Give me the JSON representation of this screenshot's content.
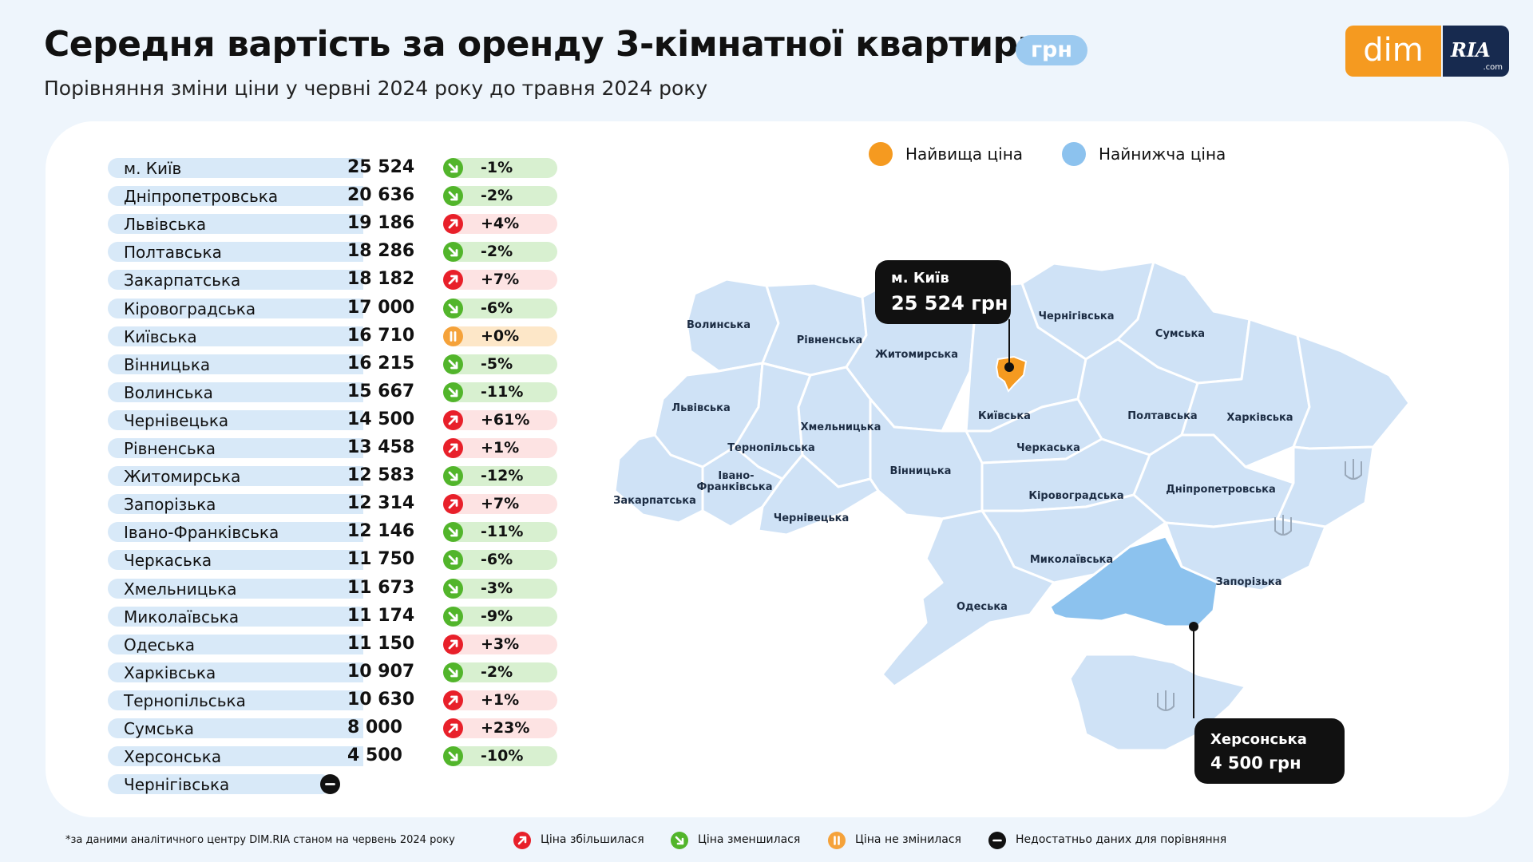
{
  "header": {
    "title": "Середня вартість за оренду 3-кімнатної квартири",
    "unit_badge": "грн",
    "subtitle": "Порівняння зміни ціни у червні 2024 року до травня 2024 року"
  },
  "logo": {
    "dim": "dim",
    "ria": "RIA",
    "com": ".com"
  },
  "colors": {
    "up": "#e8202a",
    "down": "#52b52b",
    "same": "#f5a23a",
    "nodata": "#111111",
    "up_bg": "#fde3e3",
    "down_bg": "#d8f0d0",
    "same_bg": "#fde7c8",
    "highest": "#f59a20",
    "lowest": "#8cc2ee",
    "region": "#cfe2f6"
  },
  "table": [
    {
      "region": "м. Київ",
      "price": "25 524",
      "change": "-1%",
      "trend": "down"
    },
    {
      "region": "Дніпропетровська",
      "price": "20 636",
      "change": "-2%",
      "trend": "down"
    },
    {
      "region": "Львівська",
      "price": "19 186",
      "change": "+4%",
      "trend": "up"
    },
    {
      "region": "Полтавська",
      "price": "18 286",
      "change": "-2%",
      "trend": "down"
    },
    {
      "region": "Закарпатська",
      "price": "18 182",
      "change": "+7%",
      "trend": "up"
    },
    {
      "region": "Кіровоградська",
      "price": "17 000",
      "change": "-6%",
      "trend": "down"
    },
    {
      "region": "Київська",
      "price": "16 710",
      "change": "+0%",
      "trend": "same"
    },
    {
      "region": "Вінницька",
      "price": "16 215",
      "change": "-5%",
      "trend": "down"
    },
    {
      "region": "Волинська",
      "price": "15 667",
      "change": "-11%",
      "trend": "down"
    },
    {
      "region": "Чернівецька",
      "price": "14 500",
      "change": "+61%",
      "trend": "up"
    },
    {
      "region": "Рівненська",
      "price": "13 458",
      "change": "+1%",
      "trend": "up"
    },
    {
      "region": "Житомирська",
      "price": "12 583",
      "change": "-12%",
      "trend": "down"
    },
    {
      "region": "Запорізька",
      "price": "12 314",
      "change": "+7%",
      "trend": "up"
    },
    {
      "region": "Івано-Франківська",
      "price": "12 146",
      "change": "-11%",
      "trend": "down"
    },
    {
      "region": "Черкаська",
      "price": "11 750",
      "change": "-6%",
      "trend": "down"
    },
    {
      "region": "Хмельницька",
      "price": "11 673",
      "change": "-3%",
      "trend": "down"
    },
    {
      "region": "Миколаївська",
      "price": "11 174",
      "change": "-9%",
      "trend": "down"
    },
    {
      "region": "Одеська",
      "price": "11 150",
      "change": "+3%",
      "trend": "up"
    },
    {
      "region": "Харківська",
      "price": "10 907",
      "change": "-2%",
      "trend": "down"
    },
    {
      "region": "Тернопільська",
      "price": "10 630",
      "change": "+1%",
      "trend": "up"
    },
    {
      "region": "Сумська",
      "price": "8 000",
      "change": "+23%",
      "trend": "up"
    },
    {
      "region": "Херсонська",
      "price": "4 500",
      "change": "-10%",
      "trend": "down"
    },
    {
      "region": "Чернігівська",
      "price": "",
      "change": "",
      "trend": "nodata"
    }
  ],
  "legend_top": {
    "highest": "Найвища ціна",
    "lowest": "Найнижча ціна"
  },
  "map_labels": {
    "volynska": "Волинська",
    "rivnenska": "Рівненська",
    "zhytomyrska": "Житомирська",
    "chernihivska": "Чернігівська",
    "sumska": "Сумська",
    "lvivska": "Львівська",
    "khmelnytska": "Хмельницька",
    "ternopilska": "Тернопільська",
    "kyivska": "Київська",
    "poltavska": "Полтавська",
    "kharkivska": "Харківська",
    "ivano1": "Івано-",
    "ivano2": "Франківська",
    "vinnytska": "Вінницька",
    "cherkaska": "Черкаська",
    "zakarpatska": "Закарпатська",
    "chernivetska": "Чернівецька",
    "kirovohradska": "Кіровоградська",
    "dnipropetrovska": "Дніпропетровська",
    "mykolaivska": "Миколаївська",
    "zaporizka": "Запорізька",
    "odeska": "Одеська"
  },
  "callouts": {
    "kyiv": {
      "name": "м. Київ",
      "value": "25 524 грн"
    },
    "kherson": {
      "name": "Херсонська",
      "value": "4 500 грн"
    }
  },
  "footer": {
    "source": "*за даними аналітичного центру DIM.RIA станом на червень 2024 року",
    "up": "Ціна збільшилася",
    "down": "Ціна зменшилася",
    "same": "Ціна не змінилася",
    "nodata": "Недостатньо даних для порівняння"
  }
}
